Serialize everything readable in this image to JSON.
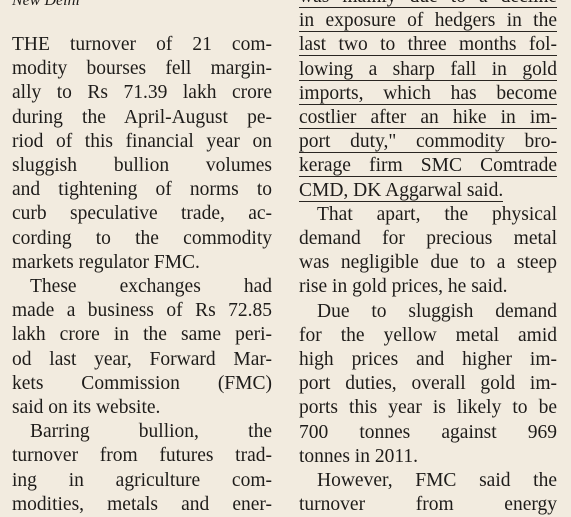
{
  "dateline": "New Delhi",
  "columns": [
    {
      "lines": [
        "THE turnover of 21 com-",
        "modity bourses fell margin-",
        "ally to Rs 71.39 lakh crore",
        "during the April-August pe-",
        "riod of this financial year on",
        "sluggish bullion volumes",
        "and tightening of norms to",
        "curb speculative trade, ac-",
        "cording to the commodity",
        "markets regulator FMC.",
        "These exchanges had",
        "made a business of Rs 72.85",
        "lakh crore in the same peri-",
        "od last year, Forward Mar-",
        "kets Commission (FMC)",
        "said on its website.",
        "Barring bullion, the",
        "turnover from futures trad-",
        "ing in agriculture com-",
        "modities, metals and ener-"
      ]
    },
    {
      "lines": [
        "was mainly due to a decline",
        "in exposure of hedgers in the",
        "last two to three months fol-",
        "lowing a sharp fall in gold",
        "imports, which has become",
        "costlier after an hike in im-",
        "port duty,\" commodity bro-",
        "kerage firm SMC Comtrade",
        "CMD, DK Aggarwal said.",
        "That apart, the physical",
        "demand for precious metal",
        "was negligible due to a steep",
        "rise in gold prices, he said.",
        "Due to sluggish demand",
        "for the yellow metal amid",
        "high prices and higher im-",
        "port duties, overall gold im-",
        "ports this year is likely to be",
        "700 tonnes against 969",
        "tonnes in 2011.",
        "However, FMC said the",
        "turnover from energy"
      ]
    }
  ]
}
